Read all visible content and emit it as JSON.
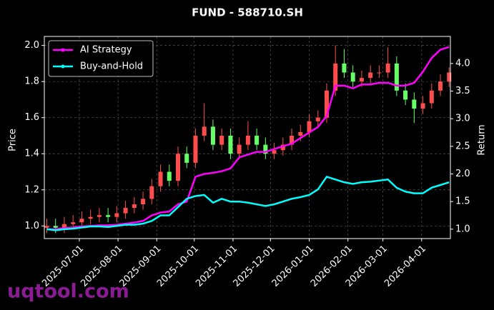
{
  "chart_data": {
    "type": "candlestick",
    "title": "FUND - 588710.SH",
    "ylabel": "Price",
    "y2label": "Return",
    "watermark": "uqtool.com",
    "up_color": "#ff4d4d",
    "down_color": "#66ff66",
    "grid": true,
    "legend": "upper left",
    "x": [
      "2025-06-05",
      "2025-06-12",
      "2025-06-19",
      "2025-06-26",
      "2025-07-03",
      "2025-07-10",
      "2025-07-17",
      "2025-07-24",
      "2025-07-31",
      "2025-08-07",
      "2025-08-14",
      "2025-08-21",
      "2025-08-28",
      "2025-09-04",
      "2025-09-11",
      "2025-09-18",
      "2025-09-25",
      "2025-10-02",
      "2025-10-09",
      "2025-10-16",
      "2025-10-23",
      "2025-10-30",
      "2025-11-06",
      "2025-11-13",
      "2025-11-20",
      "2025-11-27",
      "2025-12-04",
      "2025-12-11",
      "2025-12-18",
      "2025-12-25",
      "2026-01-01",
      "2026-01-08",
      "2026-01-15",
      "2026-01-22",
      "2026-01-29",
      "2026-02-05",
      "2026-02-12",
      "2026-02-19",
      "2026-02-26",
      "2026-03-05",
      "2026-03-12",
      "2026-03-19",
      "2026-03-26",
      "2026-04-02",
      "2026-04-09",
      "2026-04-16",
      "2026-04-23"
    ],
    "open": [
      0.99,
      1.0,
      0.99,
      1.01,
      1.02,
      1.04,
      1.05,
      1.06,
      1.05,
      1.07,
      1.1,
      1.12,
      1.15,
      1.22,
      1.3,
      1.25,
      1.4,
      1.35,
      1.5,
      1.55,
      1.45,
      1.5,
      1.4,
      1.45,
      1.5,
      1.45,
      1.4,
      1.42,
      1.45,
      1.5,
      1.52,
      1.58,
      1.6,
      1.75,
      1.9,
      1.85,
      1.8,
      1.82,
      1.85,
      1.85,
      1.9,
      1.75,
      1.7,
      1.65,
      1.68,
      1.75,
      1.8
    ],
    "high": [
      1.04,
      1.04,
      1.05,
      1.06,
      1.08,
      1.09,
      1.1,
      1.1,
      1.11,
      1.14,
      1.16,
      1.19,
      1.26,
      1.34,
      1.34,
      1.44,
      1.44,
      1.54,
      1.68,
      1.59,
      1.54,
      1.54,
      1.49,
      1.58,
      1.54,
      1.49,
      1.46,
      1.49,
      1.54,
      1.56,
      1.62,
      1.64,
      1.79,
      2.0,
      1.98,
      1.89,
      1.86,
      1.89,
      1.89,
      1.99,
      1.94,
      1.79,
      1.74,
      1.72,
      1.79,
      1.84,
      1.88
    ],
    "low": [
      0.96,
      0.96,
      0.96,
      0.98,
      0.99,
      1.01,
      1.02,
      1.02,
      1.02,
      1.04,
      1.07,
      1.09,
      1.12,
      1.19,
      1.22,
      1.22,
      1.32,
      1.32,
      1.47,
      1.42,
      1.42,
      1.37,
      1.37,
      1.42,
      1.42,
      1.37,
      1.37,
      1.39,
      1.42,
      1.47,
      1.49,
      1.55,
      1.57,
      1.72,
      1.82,
      1.77,
      1.77,
      1.79,
      1.82,
      1.82,
      1.72,
      1.67,
      1.57,
      1.62,
      1.65,
      1.72,
      1.77
    ],
    "close": [
      1.0,
      0.99,
      1.01,
      1.02,
      1.04,
      1.05,
      1.06,
      1.05,
      1.07,
      1.1,
      1.12,
      1.15,
      1.22,
      1.3,
      1.25,
      1.4,
      1.35,
      1.5,
      1.55,
      1.45,
      1.5,
      1.4,
      1.45,
      1.5,
      1.45,
      1.4,
      1.42,
      1.45,
      1.5,
      1.52,
      1.58,
      1.6,
      1.75,
      1.9,
      1.85,
      1.8,
      1.82,
      1.85,
      1.85,
      1.9,
      1.75,
      1.7,
      1.65,
      1.68,
      1.75,
      1.8,
      1.85
    ],
    "series": [
      {
        "name": "AI Strategy",
        "color": "#ff00ff",
        "axis": "y2",
        "values": [
          1.0,
          1.0,
          1.02,
          1.03,
          1.05,
          1.06,
          1.07,
          1.07,
          1.08,
          1.1,
          1.12,
          1.15,
          1.25,
          1.3,
          1.32,
          1.45,
          1.5,
          1.95,
          2.0,
          2.02,
          2.05,
          2.1,
          2.3,
          2.35,
          2.4,
          2.4,
          2.45,
          2.5,
          2.55,
          2.65,
          2.75,
          2.85,
          3.05,
          3.6,
          3.6,
          3.55,
          3.62,
          3.62,
          3.65,
          3.65,
          3.6,
          3.6,
          3.65,
          3.85,
          4.1,
          4.25,
          4.3
        ]
      },
      {
        "name": "Buy-and-Hold",
        "color": "#00ffff",
        "axis": "y2",
        "values": [
          1.0,
          0.98,
          1.0,
          1.01,
          1.03,
          1.05,
          1.05,
          1.04,
          1.06,
          1.08,
          1.08,
          1.1,
          1.15,
          1.25,
          1.25,
          1.4,
          1.55,
          1.6,
          1.62,
          1.48,
          1.55,
          1.5,
          1.5,
          1.48,
          1.45,
          1.42,
          1.45,
          1.5,
          1.55,
          1.58,
          1.62,
          1.72,
          1.95,
          1.9,
          1.85,
          1.82,
          1.85,
          1.86,
          1.88,
          1.9,
          1.75,
          1.68,
          1.65,
          1.65,
          1.75,
          1.8,
          1.85
        ]
      }
    ],
    "xlim": [
      "2025-06-03",
      "2026-04-24"
    ],
    "xticks": [
      "2025-07-01",
      "2025-08-01",
      "2025-09-01",
      "2025-10-01",
      "2025-11-01",
      "2025-12-01",
      "2026-01-01",
      "2026-02-01",
      "2026-03-01",
      "2026-04-01"
    ],
    "ylim": [
      0.93,
      2.05
    ],
    "yticks": [
      {
        "value": 1,
        "label": "1.0"
      },
      1.2,
      1.4,
      1.6,
      1.8,
      {
        "value": 2,
        "label": "2.0"
      }
    ],
    "y2lim": [
      0.83,
      4.49
    ],
    "y2ticks": [
      {
        "value": 1,
        "label": "1.0"
      },
      1.5,
      {
        "value": 2,
        "label": "2.0"
      },
      2.5,
      {
        "value": 3,
        "label": "3.0"
      },
      3.5,
      {
        "value": 4,
        "label": "4.0"
      }
    ]
  }
}
